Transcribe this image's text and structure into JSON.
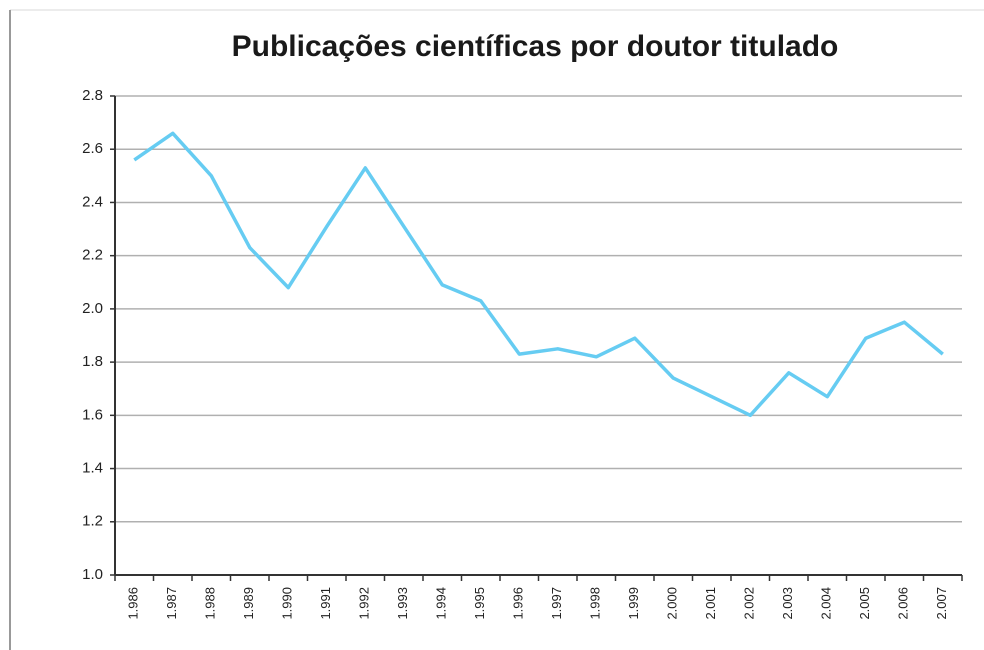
{
  "chart_data": {
    "type": "line",
    "title": "Publicações científicas por doutor titulado",
    "categories": [
      "1.986",
      "1.987",
      "1.988",
      "1.989",
      "1.990",
      "1.991",
      "1.992",
      "1.993",
      "1.994",
      "1.995",
      "1.996",
      "1.997",
      "1.998",
      "1.999",
      "2.000",
      "2.001",
      "2.002",
      "2.003",
      "2.004",
      "2.005",
      "2.006",
      "2.007"
    ],
    "values": [
      2.56,
      2.66,
      2.5,
      2.23,
      2.08,
      2.31,
      2.53,
      2.31,
      2.09,
      2.03,
      1.83,
      1.85,
      1.82,
      1.89,
      1.74,
      1.67,
      1.6,
      1.76,
      1.67,
      1.89,
      1.95,
      1.83
    ],
    "color": "#66ccf2",
    "ylim": [
      1.0,
      2.8
    ],
    "yticks": [
      {
        "value": 1,
        "label": "1.0"
      },
      1.2,
      1.4,
      1.6,
      1.8,
      {
        "value": 2,
        "label": "2.0"
      },
      2.2,
      2.4,
      2.6,
      2.8
    ],
    "grid": true
  }
}
